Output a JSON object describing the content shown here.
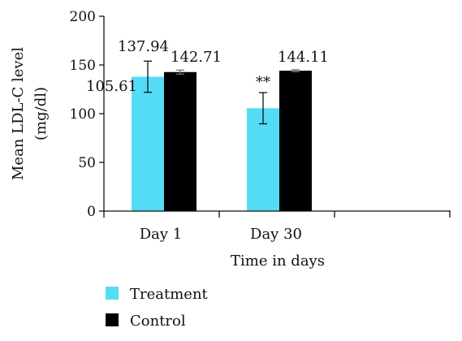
{
  "chart_data": {
    "type": "bar",
    "categories": [
      "Day 1",
      "Day 30"
    ],
    "series": [
      {
        "name": "Treatment",
        "color": "#55dcf5",
        "values": [
          137.94,
          105.61
        ],
        "error": [
          16,
          16
        ],
        "value_labels": [
          "137.94",
          "105.61"
        ],
        "annotations": [
          "",
          "**"
        ]
      },
      {
        "name": "Control",
        "color": "#000000",
        "values": [
          142.71,
          144.11
        ],
        "error": [
          2,
          1
        ],
        "value_labels": [
          "142.71",
          "144.11"
        ],
        "annotations": [
          "",
          ""
        ]
      }
    ],
    "xlabel": "Time in days",
    "ylabel": "Mean LDL-C level",
    "ylabel_unit": "(mg/dl)",
    "ylim": [
      0,
      200
    ],
    "yticks": [
      0,
      50,
      100,
      150,
      200
    ],
    "ytick_labels": [
      "0",
      "50",
      "100",
      "150",
      "200"
    ],
    "grid": false,
    "legend_position": "bottom-left"
  }
}
